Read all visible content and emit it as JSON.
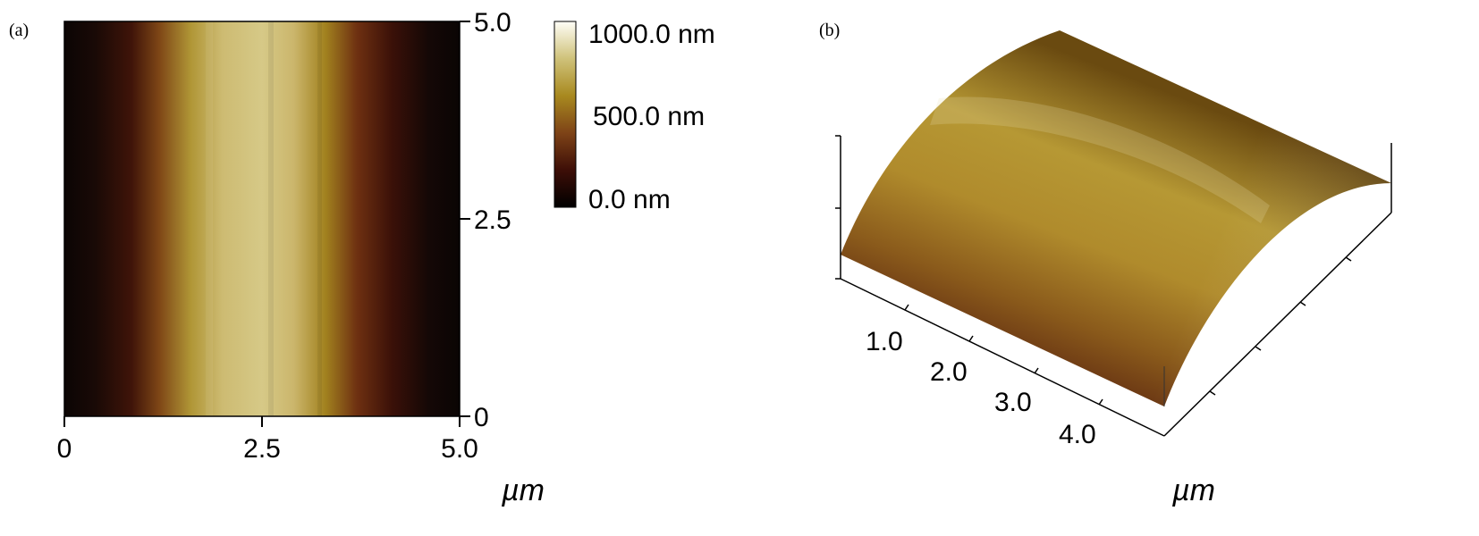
{
  "panels": {
    "a": {
      "label": "(a)",
      "x_ticks": [
        "0",
        "2.5",
        "5.0"
      ],
      "y_ticks": [
        "0",
        "2.5",
        "5.0"
      ],
      "x_unit": "µm",
      "colorbar": {
        "labels": [
          "1000.0 nm",
          "500.0 nm",
          "0.0 nm"
        ],
        "colors": [
          "#000000",
          "#3d0e07",
          "#7e4317",
          "#a8891f",
          "#cfc27a",
          "#fffef7"
        ]
      }
    },
    "b": {
      "label": "(b)",
      "x_ticks": [
        "1.0",
        "2.0",
        "3.0",
        "4.0"
      ],
      "x_unit": "µm"
    }
  }
}
